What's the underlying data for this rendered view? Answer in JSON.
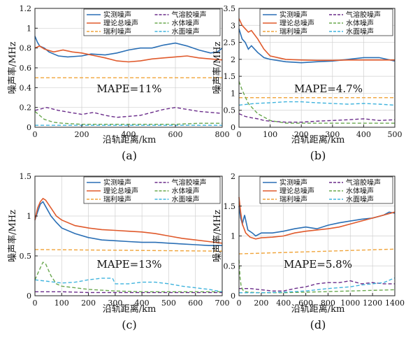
{
  "chart_data": [
    {
      "type": "line",
      "caption": "(a)",
      "xlabel": "沿轨距离/km",
      "ylabel": "噪声率/MHz",
      "xlim": [
        0,
        800
      ],
      "ylim": [
        0,
        1.2
      ],
      "xticks": [
        0,
        200,
        400,
        600,
        800
      ],
      "yticks": [
        0,
        0.2,
        0.4,
        0.6,
        0.8,
        1.0,
        1.2
      ],
      "ytick_labels": [
        "0",
        "0.2",
        "0.4",
        "0.6",
        "0.8",
        "1",
        "1.2"
      ],
      "grid": true,
      "annotation": "MAPE=11%",
      "series": [
        {
          "name": "实测噪声",
          "color": "#2a6fb5",
          "style": "solid",
          "x": [
            0,
            10,
            20,
            40,
            60,
            80,
            100,
            140,
            200,
            240,
            300,
            350,
            400,
            450,
            500,
            550,
            600,
            650,
            700,
            750,
            780,
            800
          ],
          "y": [
            0.92,
            0.86,
            0.82,
            0.8,
            0.76,
            0.74,
            0.72,
            0.71,
            0.72,
            0.74,
            0.73,
            0.75,
            0.78,
            0.8,
            0.8,
            0.83,
            0.85,
            0.82,
            0.78,
            0.75,
            0.76,
            0.8
          ]
        },
        {
          "name": "理论总噪声",
          "color": "#e05a2c",
          "style": "solid",
          "x": [
            0,
            20,
            40,
            80,
            120,
            160,
            200,
            260,
            300,
            350,
            400,
            450,
            500,
            550,
            600,
            650,
            700,
            750,
            800
          ],
          "y": [
            0.8,
            0.82,
            0.79,
            0.76,
            0.78,
            0.76,
            0.75,
            0.72,
            0.7,
            0.67,
            0.66,
            0.67,
            0.69,
            0.7,
            0.71,
            0.72,
            0.7,
            0.69,
            0.68
          ]
        },
        {
          "name": "瑞利噪声",
          "color": "#f0a43a",
          "style": "dashed",
          "x": [
            0,
            800
          ],
          "y": [
            0.5,
            0.5
          ]
        },
        {
          "name": "气溶胶噪声",
          "color": "#6a2c8a",
          "style": "dashed",
          "x": [
            0,
            50,
            100,
            150,
            200,
            250,
            300,
            350,
            400,
            450,
            500,
            550,
            600,
            650,
            700,
            750,
            800
          ],
          "y": [
            0.17,
            0.2,
            0.17,
            0.15,
            0.13,
            0.15,
            0.12,
            0.1,
            0.11,
            0.12,
            0.15,
            0.18,
            0.2,
            0.18,
            0.16,
            0.15,
            0.14
          ]
        },
        {
          "name": "水体噪声",
          "color": "#6aa84f",
          "style": "dashed",
          "x": [
            0,
            20,
            40,
            80,
            120,
            200,
            300,
            400,
            500,
            600,
            700,
            800
          ],
          "y": [
            0.16,
            0.12,
            0.08,
            0.05,
            0.04,
            0.03,
            0.03,
            0.03,
            0.03,
            0.03,
            0.04,
            0.04
          ]
        },
        {
          "name": "水面噪声",
          "color": "#3fb3dd",
          "style": "dashed",
          "x": [
            0,
            100,
            200,
            300,
            400,
            500,
            600,
            700,
            800
          ],
          "y": [
            0.02,
            0.02,
            0.02,
            0.02,
            0.02,
            0.02,
            0.02,
            0.02,
            0.02
          ]
        }
      ]
    },
    {
      "type": "line",
      "caption": "(b)",
      "xlabel": "沿轨距离/km",
      "ylabel": "噪声率/MHz",
      "xlim": [
        0,
        500
      ],
      "ylim": [
        0,
        3.5
      ],
      "xticks": [
        0,
        100,
        200,
        300,
        400,
        500
      ],
      "yticks": [
        0,
        0.5,
        1.0,
        1.5,
        2.0,
        2.5,
        3.0,
        3.5
      ],
      "ytick_labels": [
        "0",
        "0.5",
        "1",
        "1.5",
        "2",
        "2.5",
        "3",
        "3.5"
      ],
      "grid": true,
      "annotation": "MAPE=4.7%",
      "series": [
        {
          "name": "实测噪声",
          "color": "#2a6fb5",
          "style": "solid",
          "x": [
            0,
            10,
            20,
            30,
            40,
            60,
            80,
            100,
            150,
            200,
            250,
            300,
            350,
            400,
            450,
            500
          ],
          "y": [
            2.9,
            2.6,
            2.5,
            2.3,
            2.4,
            2.2,
            2.05,
            2.0,
            1.93,
            1.9,
            1.93,
            1.95,
            2.0,
            2.05,
            2.05,
            1.95
          ]
        },
        {
          "name": "理论总噪声",
          "color": "#e05a2c",
          "style": "solid",
          "x": [
            0,
            10,
            20,
            30,
            40,
            60,
            80,
            100,
            150,
            200,
            250,
            300,
            350,
            400,
            450,
            500
          ],
          "y": [
            3.2,
            3.0,
            2.9,
            2.8,
            2.85,
            2.6,
            2.3,
            2.1,
            2.0,
            1.98,
            1.97,
            1.97,
            1.98,
            1.98,
            1.98,
            1.98
          ]
        },
        {
          "name": "瑞利噪声",
          "color": "#f0a43a",
          "style": "dashed",
          "x": [
            0,
            500
          ],
          "y": [
            0.87,
            0.87
          ]
        },
        {
          "name": "气溶胶噪声",
          "color": "#6a2c8a",
          "style": "dashed",
          "x": [
            0,
            20,
            40,
            60,
            80,
            100,
            150,
            200,
            250,
            300,
            350,
            400,
            450,
            500
          ],
          "y": [
            0.4,
            0.32,
            0.28,
            0.25,
            0.2,
            0.18,
            0.15,
            0.15,
            0.18,
            0.2,
            0.22,
            0.25,
            0.2,
            0.22
          ]
        },
        {
          "name": "水体噪声",
          "color": "#6aa84f",
          "style": "dashed",
          "x": [
            0,
            10,
            20,
            30,
            40,
            60,
            80,
            100,
            150,
            200,
            300,
            400,
            500
          ],
          "y": [
            1.35,
            1.1,
            0.9,
            0.7,
            0.6,
            0.4,
            0.3,
            0.2,
            0.12,
            0.12,
            0.12,
            0.12,
            0.12
          ]
        },
        {
          "name": "水面噪声",
          "color": "#3fb3dd",
          "style": "dashed",
          "x": [
            0,
            50,
            100,
            150,
            200,
            250,
            300,
            350,
            400,
            450,
            500
          ],
          "y": [
            0.65,
            0.7,
            0.72,
            0.75,
            0.75,
            0.72,
            0.7,
            0.68,
            0.7,
            0.68,
            0.65
          ]
        }
      ]
    },
    {
      "type": "line",
      "caption": "(c)",
      "xlabel": "沿轨距离/km",
      "ylabel": "噪声率/MHz",
      "xlim": [
        0,
        700
      ],
      "ylim": [
        0,
        1.5
      ],
      "xticks": [
        0,
        100,
        200,
        300,
        400,
        500,
        600,
        700
      ],
      "yticks": [
        0,
        0.5,
        1.0,
        1.5
      ],
      "ytick_labels": [
        "0",
        "0.5",
        "1",
        "1.5"
      ],
      "grid": true,
      "annotation": "MAPE=13%",
      "series": [
        {
          "name": "实测噪声",
          "color": "#2a6fb5",
          "style": "solid",
          "x": [
            0,
            10,
            20,
            30,
            40,
            60,
            80,
            100,
            150,
            200,
            250,
            300,
            350,
            400,
            450,
            500,
            550,
            600,
            650,
            700
          ],
          "y": [
            0.95,
            1.05,
            1.15,
            1.18,
            1.12,
            1.0,
            0.92,
            0.85,
            0.78,
            0.73,
            0.7,
            0.69,
            0.68,
            0.67,
            0.67,
            0.66,
            0.65,
            0.64,
            0.63,
            0.63
          ]
        },
        {
          "name": "理论总噪声",
          "color": "#e05a2c",
          "style": "solid",
          "x": [
            0,
            10,
            20,
            30,
            40,
            60,
            80,
            100,
            150,
            200,
            250,
            300,
            350,
            400,
            450,
            500,
            550,
            600,
            650,
            700
          ],
          "y": [
            0.95,
            1.1,
            1.18,
            1.22,
            1.2,
            1.1,
            1.0,
            0.95,
            0.88,
            0.85,
            0.83,
            0.82,
            0.81,
            0.8,
            0.78,
            0.75,
            0.72,
            0.7,
            0.68,
            0.66
          ]
        },
        {
          "name": "瑞利噪声",
          "color": "#f0a43a",
          "style": "dashed",
          "x": [
            0,
            700
          ],
          "y": [
            0.58,
            0.56
          ]
        },
        {
          "name": "气溶胶噪声",
          "color": "#6a2c8a",
          "style": "dashed",
          "x": [
            0,
            100,
            200,
            300,
            400,
            500,
            600,
            700
          ],
          "y": [
            0.05,
            0.05,
            0.04,
            0.04,
            0.04,
            0.04,
            0.04,
            0.04
          ]
        },
        {
          "name": "水体噪声",
          "color": "#6aa84f",
          "style": "dashed",
          "x": [
            0,
            20,
            30,
            40,
            60,
            80,
            100,
            150,
            200,
            300,
            400,
            500,
            600,
            700
          ],
          "y": [
            0.2,
            0.35,
            0.42,
            0.4,
            0.25,
            0.15,
            0.12,
            0.1,
            0.08,
            0.06,
            0.05,
            0.05,
            0.05,
            0.05
          ]
        },
        {
          "name": "水面噪声",
          "color": "#3fb3dd",
          "style": "dashed",
          "x": [
            0,
            50,
            100,
            150,
            200,
            250,
            290,
            300,
            350,
            400,
            450,
            500,
            550,
            600,
            650,
            700
          ],
          "y": [
            0.2,
            0.18,
            0.16,
            0.17,
            0.2,
            0.22,
            0.22,
            0.15,
            0.15,
            0.17,
            0.17,
            0.15,
            0.12,
            0.1,
            0.08,
            0.05
          ]
        }
      ]
    },
    {
      "type": "line",
      "caption": "(d)",
      "xlabel": "沿轨距离/km",
      "ylabel": "噪声率/MHz",
      "xlim": [
        0,
        1400
      ],
      "ylim": [
        0,
        2.0
      ],
      "xticks": [
        0,
        200,
        400,
        600,
        800,
        1000,
        1200,
        1400
      ],
      "yticks": [
        0,
        0.5,
        1.0,
        1.5,
        2.0
      ],
      "ytick_labels": [
        "0",
        "0.5",
        "1",
        "1.5",
        "2"
      ],
      "grid": true,
      "annotation": "MAPE=5.8%",
      "series": [
        {
          "name": "实测噪声",
          "color": "#2a6fb5",
          "style": "solid",
          "x": [
            0,
            15,
            30,
            50,
            80,
            120,
            150,
            200,
            300,
            400,
            500,
            600,
            700,
            800,
            900,
            1000,
            1100,
            1200,
            1300,
            1350,
            1400
          ],
          "y": [
            1.5,
            1.3,
            1.2,
            1.35,
            1.1,
            1.05,
            1.0,
            1.05,
            1.05,
            1.08,
            1.12,
            1.15,
            1.12,
            1.18,
            1.22,
            1.25,
            1.28,
            1.3,
            1.35,
            1.4,
            1.38
          ]
        },
        {
          "name": "理论总噪声",
          "color": "#e05a2c",
          "style": "solid",
          "x": [
            0,
            15,
            30,
            60,
            100,
            150,
            200,
            300,
            400,
            500,
            600,
            700,
            800,
            900,
            1000,
            1100,
            1200,
            1300,
            1400
          ],
          "y": [
            1.65,
            1.4,
            1.2,
            1.05,
            0.98,
            0.95,
            0.97,
            0.98,
            1.0,
            1.05,
            1.08,
            1.1,
            1.12,
            1.15,
            1.2,
            1.25,
            1.3,
            1.35,
            1.4
          ]
        },
        {
          "name": "瑞利噪声",
          "color": "#f0a43a",
          "style": "dashed",
          "x": [
            0,
            1400
          ],
          "y": [
            0.7,
            0.78
          ]
        },
        {
          "name": "气溶胶噪声",
          "color": "#6a2c8a",
          "style": "dashed",
          "x": [
            0,
            100,
            200,
            300,
            400,
            500,
            600,
            700,
            800,
            900,
            1000,
            1100,
            1200,
            1300,
            1400
          ],
          "y": [
            0.12,
            0.12,
            0.1,
            0.08,
            0.08,
            0.12,
            0.15,
            0.2,
            0.22,
            0.22,
            0.25,
            0.2,
            0.22,
            0.2,
            0.2
          ]
        },
        {
          "name": "水体噪声",
          "color": "#6aa84f",
          "style": "dashed",
          "x": [
            0,
            10,
            20,
            40,
            80,
            200,
            400,
            600,
            800,
            1000,
            1200,
            1400
          ],
          "y": [
            0.6,
            0.3,
            0.15,
            0.08,
            0.06,
            0.05,
            0.05,
            0.06,
            0.07,
            0.08,
            0.09,
            0.1
          ]
        },
        {
          "name": "水面噪声",
          "color": "#3fb3dd",
          "style": "dashed",
          "x": [
            0,
            100,
            200,
            400,
            600,
            800,
            1000,
            1100,
            1200,
            1300,
            1400
          ],
          "y": [
            0.05,
            0.05,
            0.05,
            0.06,
            0.08,
            0.12,
            0.15,
            0.18,
            0.2,
            0.22,
            0.3
          ]
        }
      ]
    }
  ]
}
